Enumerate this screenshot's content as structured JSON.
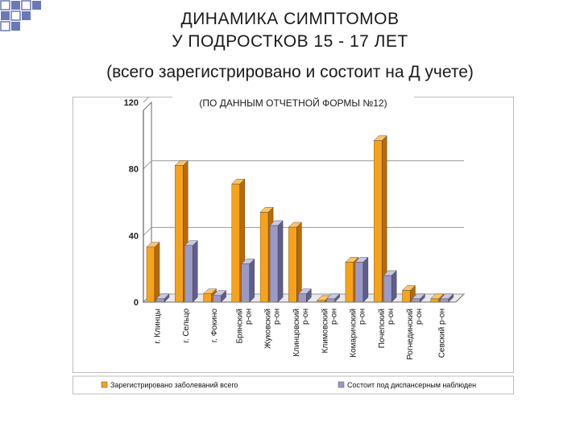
{
  "title": {
    "line1": "ДИНАМИКА СИМПТОМОВ",
    "line2": "У ПОДРОСТКОВ 15 - 17 ЛЕТ",
    "line3": "(всего зарегистрировано и состоит на Д учете)"
  },
  "colors": {
    "series1_front": "#F7A21B",
    "series1_side": "#B86A08",
    "series1_top": "#FBC46A",
    "series2_front": "#9A9AC8",
    "series2_side": "#5E5E8C",
    "series2_top": "#C8C8E6",
    "grid": "#9a9a9a",
    "decor_squares": "#6a78b8"
  },
  "chart_data": {
    "type": "bar",
    "subtitle": "(ПО ДАННЫМ ОТЧЕТНОЙ ФОРМЫ №12)",
    "categories": [
      "г. Клинцы",
      "г. Сельцо",
      "г. Фокино",
      "Брянский р-он",
      "Жуковский р-он",
      "Клинцовский р-он",
      "Климовский р-он",
      "Комаричский р-он",
      "Почепский р-он",
      "Рогнединский р-он",
      "Севский р-он"
    ],
    "series": [
      {
        "name": "Зарегистрировано заболеваний всего",
        "values": [
          33,
          82,
          5,
          71,
          54,
          45,
          1,
          24,
          97,
          7,
          2
        ]
      },
      {
        "name": "Состоит под диспансерным наблюден",
        "values": [
          2,
          34,
          4,
          23,
          46,
          5,
          2,
          24,
          16,
          2,
          2
        ]
      }
    ],
    "yticks": [
      0,
      40,
      80,
      120
    ],
    "ylim": [
      0,
      120
    ],
    "grid": true,
    "legend_position": "bottom"
  }
}
